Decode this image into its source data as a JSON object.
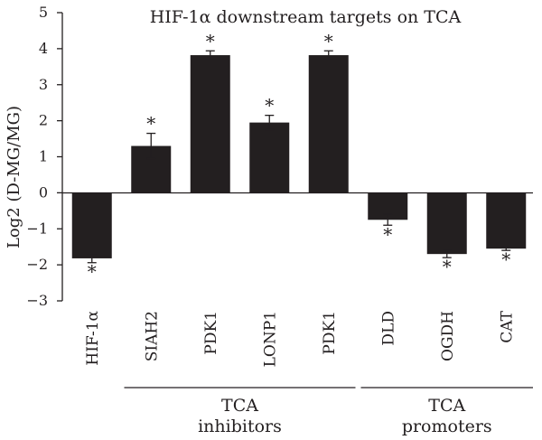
{
  "chart_data": {
    "type": "bar",
    "title": "HIF-1α downstream targets on TCA",
    "ylabel": "Log2 (D-MG/MG)",
    "xlabel": "",
    "ylim": [
      -3,
      5
    ],
    "yticks": [
      "−3",
      "−2",
      "−1",
      "0",
      "1",
      "2",
      "3",
      "4",
      "5"
    ],
    "ytick_values": [
      -3,
      -2,
      -1,
      0,
      1,
      2,
      3,
      4,
      5
    ],
    "categories": [
      "HIF-1α",
      "SIAH2",
      "PDK1",
      "LONP1",
      "PDK1",
      "DLD",
      "OGDH",
      "CAT"
    ],
    "values": [
      -1.82,
      1.3,
      3.82,
      1.95,
      3.82,
      -0.75,
      -1.7,
      -1.55
    ],
    "errors": [
      0.12,
      0.35,
      0.12,
      0.2,
      0.12,
      0.15,
      0.1,
      0.05
    ],
    "significance": [
      "*",
      "*",
      "*",
      "*",
      "*",
      "*",
      "*",
      "*"
    ],
    "bar_color": "#231f20",
    "grid": false,
    "legend": "none",
    "groups": [
      {
        "label_line1": "TCA",
        "label_line2": "inhibitors",
        "from": 1,
        "to": 4
      },
      {
        "label_line1": "TCA",
        "label_line2": "promoters",
        "from": 5,
        "to": 7
      }
    ]
  }
}
